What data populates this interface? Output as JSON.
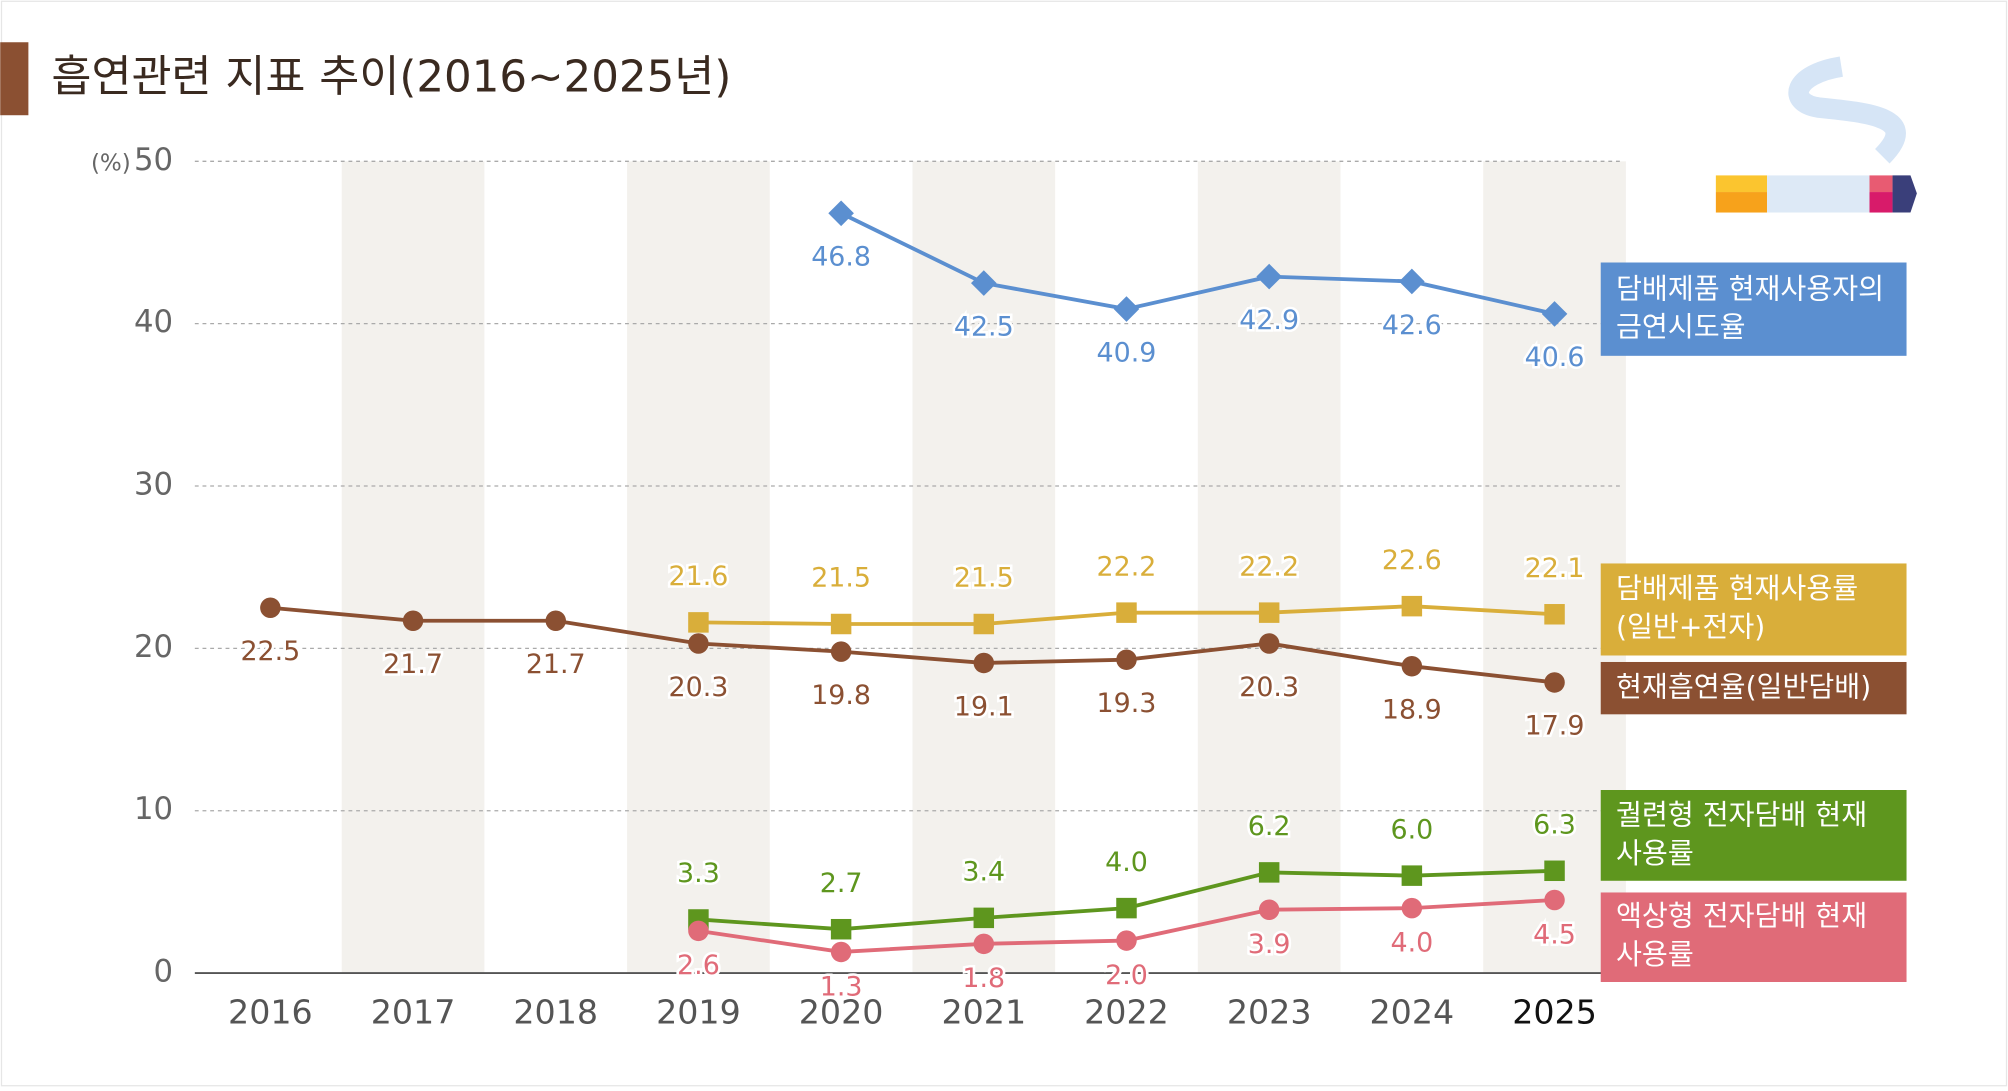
{
  "chart_data": {
    "type": "line",
    "title": "흡연관련 지표 추이(2016~2025년)",
    "y_unit": "(%)",
    "categories": [
      "2016",
      "2017",
      "2018",
      "2019",
      "2020",
      "2021",
      "2022",
      "2023",
      "2024",
      "2025"
    ],
    "ylim": [
      0,
      50
    ],
    "yticks": [
      0,
      10,
      20,
      30,
      40,
      50
    ],
    "grid": true,
    "series": [
      {
        "name": "담배제품 현재사용자의 금연시도율",
        "color": "#5b8fd0",
        "marker": "diamond",
        "values": [
          null,
          null,
          null,
          null,
          46.8,
          42.5,
          40.9,
          42.9,
          42.6,
          40.6
        ]
      },
      {
        "name": "담배제품 현재사용률 (일반+전자)",
        "color": "#d9ae3a",
        "marker": "square",
        "values": [
          null,
          null,
          null,
          21.6,
          21.5,
          21.5,
          22.2,
          22.2,
          22.6,
          22.1
        ]
      },
      {
        "name": "현재흡연율(일반담배)",
        "color": "#8b5032",
        "marker": "circle",
        "values": [
          22.5,
          21.7,
          21.7,
          20.3,
          19.8,
          19.1,
          19.3,
          20.3,
          18.9,
          17.9
        ]
      },
      {
        "name": "궐련형 전자담배 현재사용률",
        "color": "#5e961e",
        "marker": "square",
        "values": [
          null,
          null,
          null,
          3.3,
          2.7,
          3.4,
          4.0,
          6.2,
          6.0,
          6.3
        ],
        "value_labels": [
          null,
          null,
          null,
          "3.3",
          "2.7",
          "3.4",
          "4.0",
          "6.2",
          "6.0",
          "6.3"
        ]
      },
      {
        "name": "액상형 전자담배 현재사용률",
        "color": "#e06b78",
        "marker": "circle",
        "values": [
          null,
          null,
          null,
          2.6,
          1.3,
          1.8,
          2.0,
          3.9,
          4.0,
          4.5
        ],
        "value_labels": [
          null,
          null,
          null,
          "2.6",
          "1.3",
          "1.8",
          "2.0",
          "3.9",
          "4.0",
          "4.5"
        ]
      }
    ]
  }
}
